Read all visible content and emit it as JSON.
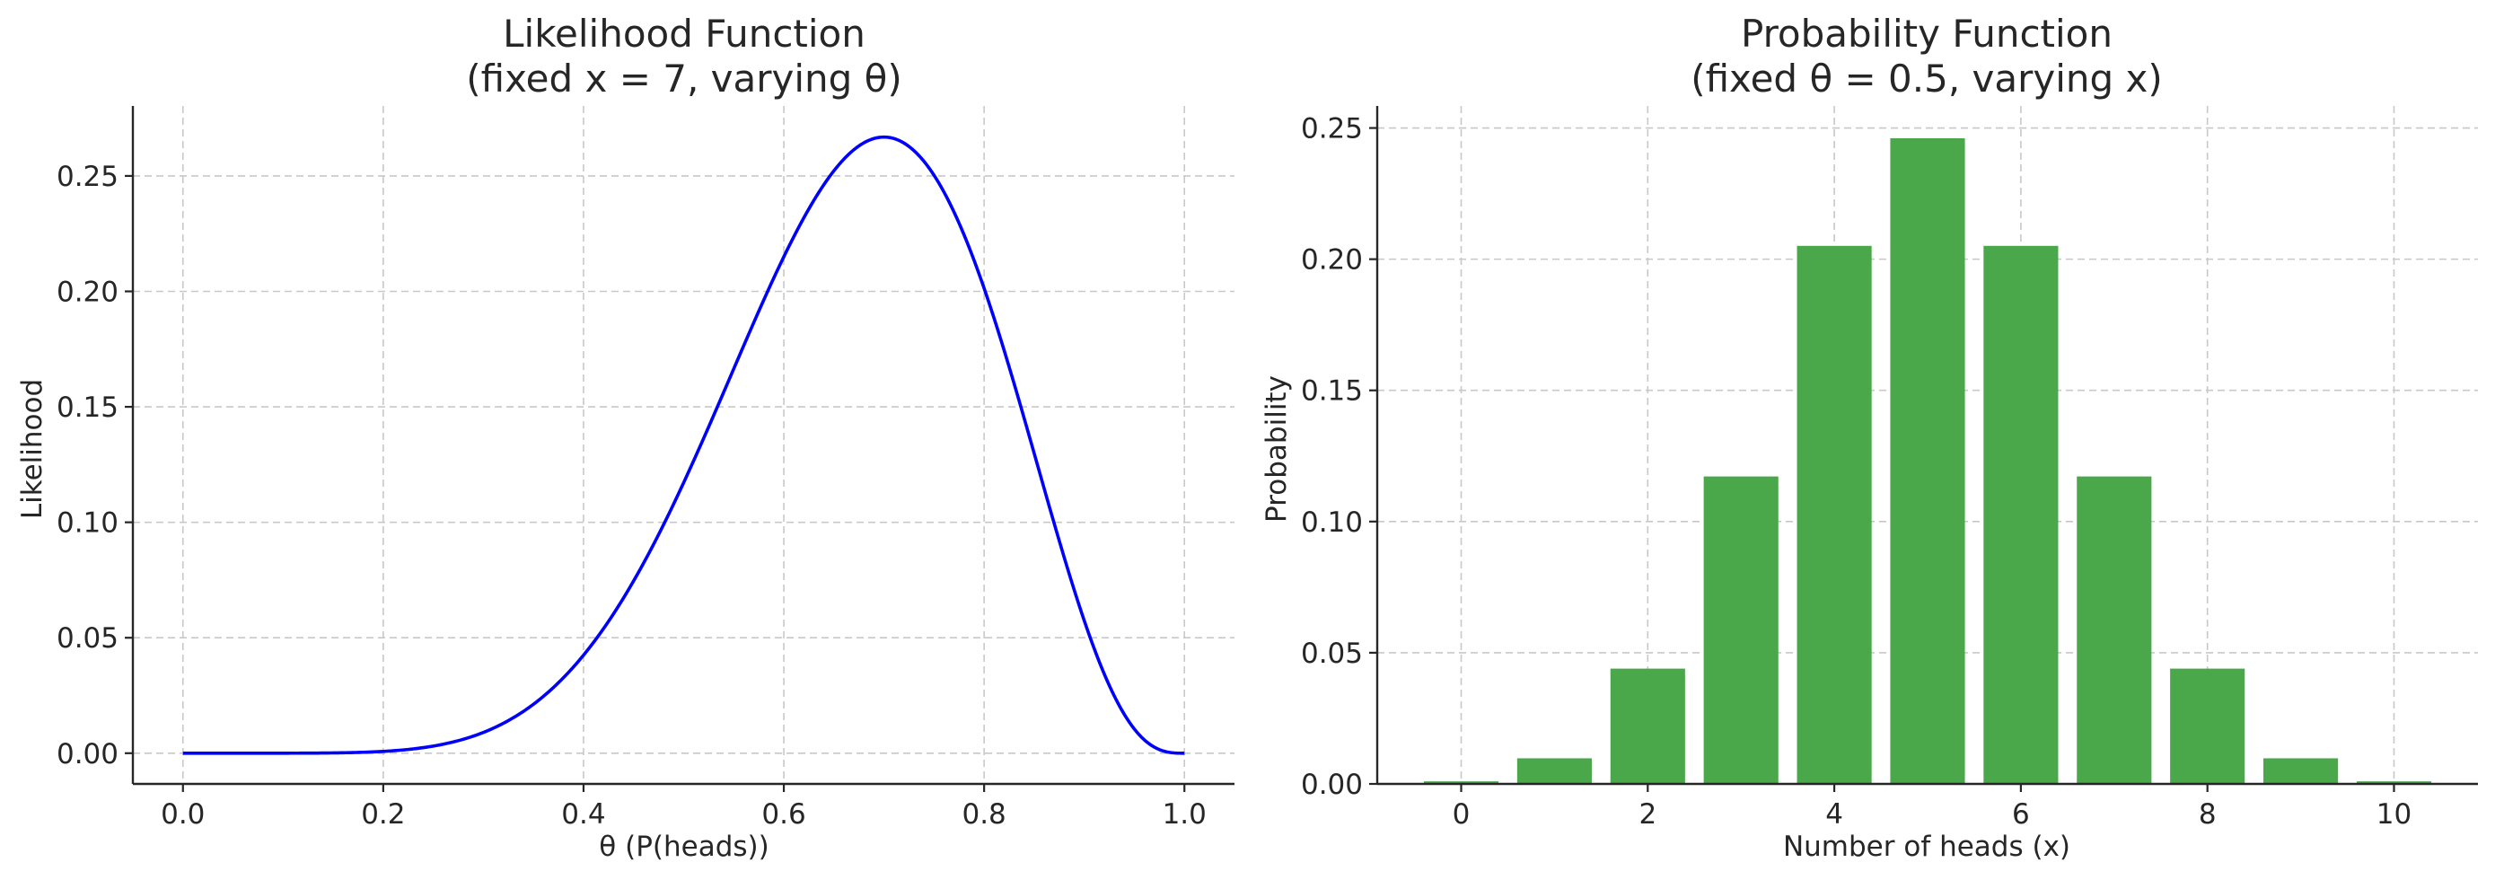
{
  "chart_data": [
    {
      "type": "line",
      "title_line1": "Likelihood Function",
      "title_line2": "(fixed x = 7, varying θ)",
      "xlabel": "θ (P(heads))",
      "ylabel": "Likelihood",
      "xlim": [
        -0.05,
        1.05
      ],
      "ylim": [
        -0.0133,
        0.2803
      ],
      "xticks": [
        0.0,
        0.2,
        0.4,
        0.6,
        0.8,
        1.0
      ],
      "xtick_labels": [
        "0.0",
        "0.2",
        "0.4",
        "0.6",
        "0.8",
        "1.0"
      ],
      "yticks": [
        0.0,
        0.05,
        0.1,
        0.15,
        0.2,
        0.25
      ],
      "ytick_labels": [
        "0.00",
        "0.05",
        "0.10",
        "0.15",
        "0.20",
        "0.25"
      ],
      "grid": true,
      "series": [
        {
          "name": "likelihood",
          "color": "#0000ff",
          "function": "binomial_likelihood",
          "n": 10,
          "k": 7,
          "x_range": [
            0.0,
            1.0
          ],
          "peak": {
            "x": 0.7,
            "y": 0.2668
          }
        }
      ]
    },
    {
      "type": "bar",
      "title_line1": "Probability Function",
      "title_line2": "(fixed θ = 0.5, varying x)",
      "xlabel": "Number of heads (x)",
      "ylabel": "Probability",
      "xlim": [
        -0.9,
        10.9
      ],
      "ylim": [
        0.0,
        0.2584
      ],
      "categories": [
        0,
        1,
        2,
        3,
        4,
        5,
        6,
        7,
        8,
        9,
        10
      ],
      "values": [
        0.000977,
        0.009766,
        0.043945,
        0.117188,
        0.205078,
        0.246094,
        0.205078,
        0.117188,
        0.043945,
        0.009766,
        0.000977
      ],
      "xticks": [
        0,
        2,
        4,
        6,
        8,
        10
      ],
      "xtick_labels": [
        "0",
        "2",
        "4",
        "6",
        "8",
        "10"
      ],
      "yticks": [
        0.0,
        0.05,
        0.1,
        0.15,
        0.2,
        0.25
      ],
      "ytick_labels": [
        "0.00",
        "0.05",
        "0.10",
        "0.15",
        "0.20",
        "0.25"
      ],
      "grid": true,
      "bar_color": "#4aa74a"
    }
  ]
}
